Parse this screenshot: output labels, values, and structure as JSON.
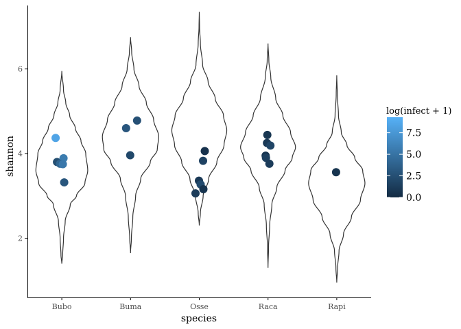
{
  "chart_data": {
    "type": "violin",
    "xlabel": "species",
    "ylabel": "shannon",
    "categories": [
      "Bubo",
      "Buma",
      "Osse",
      "Raca",
      "Rapi"
    ],
    "ylim": [
      0.6,
      7.5
    ],
    "yticks": [
      2,
      4,
      6
    ],
    "grid": false,
    "violins": [
      {
        "category": "Bubo",
        "min": 1.4,
        "max": 5.95,
        "peak": 3.55,
        "halfwidth": 0.82,
        "profile": [
          [
            1.4,
            0.0
          ],
          [
            1.6,
            0.03
          ],
          [
            2.0,
            0.06
          ],
          [
            2.4,
            0.12
          ],
          [
            2.8,
            0.3
          ],
          [
            3.0,
            0.52
          ],
          [
            3.3,
            0.82
          ],
          [
            3.6,
            0.92
          ],
          [
            4.0,
            0.85
          ],
          [
            4.3,
            0.68
          ],
          [
            4.6,
            0.48
          ],
          [
            4.9,
            0.28
          ],
          [
            5.2,
            0.14
          ],
          [
            5.5,
            0.06
          ],
          [
            5.95,
            0.0
          ]
        ]
      },
      {
        "category": "Buma",
        "min": 1.65,
        "max": 6.75,
        "peak": 4.35,
        "halfwidth": 0.82,
        "profile": [
          [
            1.65,
            0.0
          ],
          [
            2.0,
            0.03
          ],
          [
            2.5,
            0.08
          ],
          [
            3.0,
            0.18
          ],
          [
            3.4,
            0.36
          ],
          [
            3.8,
            0.7
          ],
          [
            4.1,
            0.95
          ],
          [
            4.4,
            1.0
          ],
          [
            4.8,
            0.82
          ],
          [
            5.2,
            0.56
          ],
          [
            5.6,
            0.3
          ],
          [
            6.0,
            0.12
          ],
          [
            6.4,
            0.04
          ],
          [
            6.75,
            0.0
          ]
        ]
      },
      {
        "category": "Osse",
        "min": 2.3,
        "max": 7.35,
        "peak": 4.55,
        "halfwidth": 0.8,
        "profile": [
          [
            2.3,
            0.0
          ],
          [
            2.6,
            0.04
          ],
          [
            3.0,
            0.14
          ],
          [
            3.4,
            0.34
          ],
          [
            3.8,
            0.64
          ],
          [
            4.2,
            0.9
          ],
          [
            4.55,
            1.0
          ],
          [
            4.9,
            0.88
          ],
          [
            5.3,
            0.58
          ],
          [
            5.7,
            0.32
          ],
          [
            6.1,
            0.12
          ],
          [
            6.6,
            0.04
          ],
          [
            7.0,
            0.01
          ],
          [
            7.35,
            0.0
          ]
        ]
      },
      {
        "category": "Raca",
        "min": 1.3,
        "max": 6.6,
        "peak": 4.15,
        "halfwidth": 0.8,
        "profile": [
          [
            1.3,
            0.0
          ],
          [
            1.8,
            0.02
          ],
          [
            2.3,
            0.06
          ],
          [
            2.8,
            0.14
          ],
          [
            3.2,
            0.32
          ],
          [
            3.6,
            0.62
          ],
          [
            3.9,
            0.88
          ],
          [
            4.15,
            1.0
          ],
          [
            4.5,
            0.82
          ],
          [
            4.9,
            0.54
          ],
          [
            5.3,
            0.28
          ],
          [
            5.8,
            0.1
          ],
          [
            6.2,
            0.03
          ],
          [
            6.6,
            0.0
          ]
        ]
      },
      {
        "category": "Rapi",
        "min": 0.95,
        "max": 5.85,
        "peak": 3.35,
        "halfwidth": 0.82,
        "profile": [
          [
            0.95,
            0.0
          ],
          [
            1.3,
            0.03
          ],
          [
            1.7,
            0.08
          ],
          [
            2.1,
            0.24
          ],
          [
            2.5,
            0.52
          ],
          [
            2.9,
            0.84
          ],
          [
            3.3,
            1.0
          ],
          [
            3.6,
            0.92
          ],
          [
            3.9,
            0.64
          ],
          [
            4.2,
            0.36
          ],
          [
            4.5,
            0.16
          ],
          [
            4.9,
            0.06
          ],
          [
            5.4,
            0.02
          ],
          [
            5.85,
            0.0
          ]
        ]
      }
    ],
    "points": [
      {
        "category": "Bubo",
        "jitter": -0.18,
        "y": 4.37,
        "color_value": 8.4
      },
      {
        "category": "Bubo",
        "jitter": -0.14,
        "y": 3.8,
        "color_value": 2.4
      },
      {
        "category": "Bubo",
        "jitter": 0.05,
        "y": 3.89,
        "color_value": 5.6
      },
      {
        "category": "Bubo",
        "jitter": -0.05,
        "y": 3.76,
        "color_value": 4.0
      },
      {
        "category": "Bubo",
        "jitter": 0.03,
        "y": 3.75,
        "color_value": 5.3
      },
      {
        "category": "Bubo",
        "jitter": 0.07,
        "y": 3.32,
        "color_value": 3.0
      },
      {
        "category": "Buma",
        "jitter": -0.13,
        "y": 4.6,
        "color_value": 3.0
      },
      {
        "category": "Buma",
        "jitter": 0.19,
        "y": 4.78,
        "color_value": 2.6
      },
      {
        "category": "Buma",
        "jitter": -0.01,
        "y": 3.96,
        "color_value": 2.0
      },
      {
        "category": "Osse",
        "jitter": 0.16,
        "y": 4.06,
        "color_value": 0.5
      },
      {
        "category": "Osse",
        "jitter": 0.11,
        "y": 3.83,
        "color_value": 1.6
      },
      {
        "category": "Osse",
        "jitter": -0.01,
        "y": 3.36,
        "color_value": 1.0
      },
      {
        "category": "Osse",
        "jitter": 0.04,
        "y": 3.27,
        "color_value": 2.2
      },
      {
        "category": "Osse",
        "jitter": 0.12,
        "y": 3.16,
        "color_value": 0.6
      },
      {
        "category": "Osse",
        "jitter": -0.11,
        "y": 3.06,
        "color_value": 1.2
      },
      {
        "category": "Raca",
        "jitter": -0.02,
        "y": 4.44,
        "color_value": 0.8
      },
      {
        "category": "Raca",
        "jitter": -0.03,
        "y": 4.25,
        "color_value": 1.0
      },
      {
        "category": "Raca",
        "jitter": 0.07,
        "y": 4.19,
        "color_value": 1.8
      },
      {
        "category": "Raca",
        "jitter": -0.07,
        "y": 3.95,
        "color_value": 0.6
      },
      {
        "category": "Raca",
        "jitter": -0.06,
        "y": 3.9,
        "color_value": 1.4
      },
      {
        "category": "Raca",
        "jitter": 0.04,
        "y": 3.76,
        "color_value": 1.2
      },
      {
        "category": "Rapi",
        "jitter": -0.02,
        "y": 3.56,
        "color_value": 0.6
      }
    ],
    "legend": {
      "title": "log(infect + 1)",
      "placement": "right",
      "range": [
        0,
        9.3
      ],
      "breaks": [
        0.0,
        2.5,
        5.0,
        7.5
      ],
      "labels": [
        "0.0",
        "2.5",
        "5.0",
        "7.5"
      ],
      "color_low": "#132B43",
      "color_high": "#56B1F7"
    }
  }
}
